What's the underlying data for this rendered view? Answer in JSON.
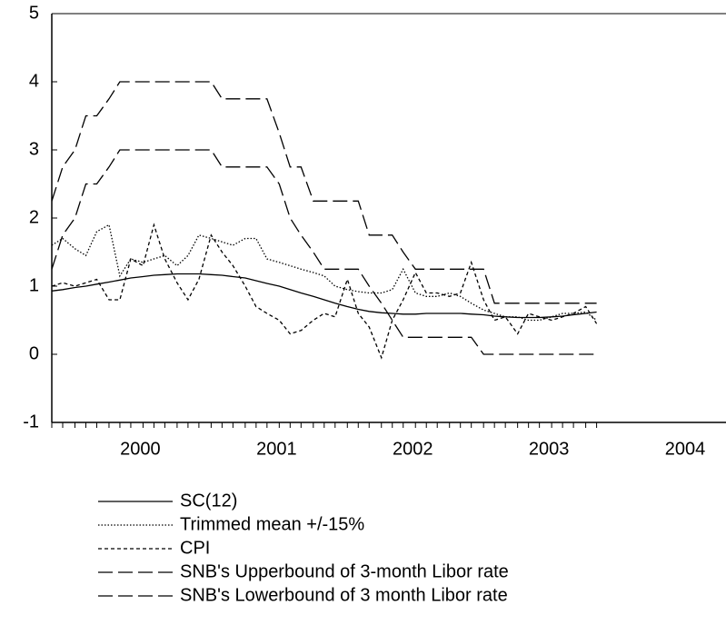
{
  "chart_data": {
    "type": "line",
    "x": [
      1999.85,
      1999.93,
      2000.02,
      2000.1,
      2000.18,
      2000.27,
      2000.35,
      2000.43,
      2000.52,
      2000.6,
      2000.68,
      2000.77,
      2000.85,
      2000.93,
      2001.02,
      2001.1,
      2001.18,
      2001.27,
      2001.35,
      2001.43,
      2001.52,
      2001.6,
      2001.68,
      2001.77,
      2001.85,
      2001.93,
      2002.02,
      2002.1,
      2002.18,
      2002.27,
      2002.35,
      2002.43,
      2002.52,
      2002.6,
      2002.68,
      2002.77,
      2002.85,
      2002.93,
      2003.02,
      2003.1,
      2003.18,
      2003.27,
      2003.35,
      2003.43,
      2003.52,
      2003.6,
      2003.68,
      2003.77,
      2003.85
    ],
    "xlim": [
      1999.85,
      2004.8
    ],
    "xticks": [
      {
        "value": 2000.5,
        "label": "2000"
      },
      {
        "value": 2001.5,
        "label": "2001"
      },
      {
        "value": 2002.5,
        "label": "2002"
      },
      {
        "value": 2003.5,
        "label": "2003"
      },
      {
        "value": 2004.5,
        "label": "2004"
      }
    ],
    "ylim": [
      -1,
      5
    ],
    "yticks": [
      -1,
      0,
      1,
      2,
      3,
      4,
      5
    ],
    "series": [
      {
        "name": "SC(12)",
        "color": "#000000",
        "style": "solid",
        "values": [
          0.93,
          0.95,
          0.98,
          1.0,
          1.03,
          1.06,
          1.09,
          1.12,
          1.14,
          1.16,
          1.17,
          1.18,
          1.18,
          1.18,
          1.17,
          1.16,
          1.14,
          1.12,
          1.08,
          1.04,
          1.0,
          0.95,
          0.9,
          0.85,
          0.8,
          0.75,
          0.7,
          0.66,
          0.63,
          0.61,
          0.6,
          0.59,
          0.59,
          0.6,
          0.6,
          0.6,
          0.6,
          0.59,
          0.58,
          0.56,
          0.55,
          0.54,
          0.54,
          0.54,
          0.55,
          0.56,
          0.58,
          0.6,
          0.62
        ]
      },
      {
        "name": "Trimmed mean +/-15%",
        "color": "#000000",
        "style": "dotted",
        "values": [
          1.6,
          1.7,
          1.55,
          1.45,
          1.8,
          1.9,
          1.15,
          1.4,
          1.35,
          1.4,
          1.45,
          1.3,
          1.45,
          1.75,
          1.7,
          1.65,
          1.6,
          1.7,
          1.7,
          1.4,
          1.35,
          1.3,
          1.25,
          1.2,
          1.15,
          1.0,
          0.95,
          0.92,
          0.9,
          0.9,
          0.95,
          1.25,
          0.9,
          0.85,
          0.85,
          0.9,
          0.85,
          0.75,
          0.65,
          0.6,
          0.55,
          0.55,
          0.5,
          0.5,
          0.55,
          0.6,
          0.6,
          0.62,
          0.5
        ]
      },
      {
        "name": "CPI",
        "color": "#000000",
        "style": "dashed",
        "values": [
          1.0,
          1.05,
          1.0,
          1.05,
          1.1,
          0.8,
          0.8,
          1.4,
          1.3,
          1.9,
          1.4,
          1.05,
          0.8,
          1.1,
          1.75,
          1.5,
          1.3,
          1.0,
          0.7,
          0.6,
          0.5,
          0.3,
          0.35,
          0.5,
          0.6,
          0.55,
          1.1,
          0.6,
          0.4,
          -0.05,
          0.5,
          0.8,
          1.2,
          0.9,
          0.9,
          0.85,
          0.9,
          1.35,
          0.8,
          0.5,
          0.55,
          0.3,
          0.6,
          0.55,
          0.5,
          0.55,
          0.6,
          0.7,
          0.45
        ]
      },
      {
        "name": "SNB's Upperbound of 3-month Libor rate",
        "color": "#000000",
        "style": "longdash",
        "values": [
          2.25,
          2.75,
          3.0,
          3.5,
          3.5,
          3.75,
          4.0,
          4.0,
          4.0,
          4.0,
          4.0,
          4.0,
          4.0,
          4.0,
          4.0,
          3.75,
          3.75,
          3.75,
          3.75,
          3.75,
          3.25,
          2.75,
          2.75,
          2.25,
          2.25,
          2.25,
          2.25,
          2.25,
          1.75,
          1.75,
          1.75,
          1.5,
          1.25,
          1.25,
          1.25,
          1.25,
          1.25,
          1.25,
          1.25,
          0.75,
          0.75,
          0.75,
          0.75,
          0.75,
          0.75,
          0.75,
          0.75,
          0.75,
          0.75
        ]
      },
      {
        "name": "SNB's Lowerbound of 3 month Libor rate",
        "color": "#000000",
        "style": "longdash",
        "values": [
          1.25,
          1.75,
          2.0,
          2.5,
          2.5,
          2.75,
          3.0,
          3.0,
          3.0,
          3.0,
          3.0,
          3.0,
          3.0,
          3.0,
          3.0,
          2.75,
          2.75,
          2.75,
          2.75,
          2.75,
          2.5,
          2.0,
          1.75,
          1.5,
          1.25,
          1.25,
          1.25,
          1.25,
          1.0,
          0.75,
          0.5,
          0.25,
          0.25,
          0.25,
          0.25,
          0.25,
          0.25,
          0.25,
          0.0,
          0.0,
          0.0,
          0.0,
          0.0,
          0.0,
          0.0,
          0.0,
          0.0,
          0.0,
          0.0
        ]
      }
    ]
  }
}
